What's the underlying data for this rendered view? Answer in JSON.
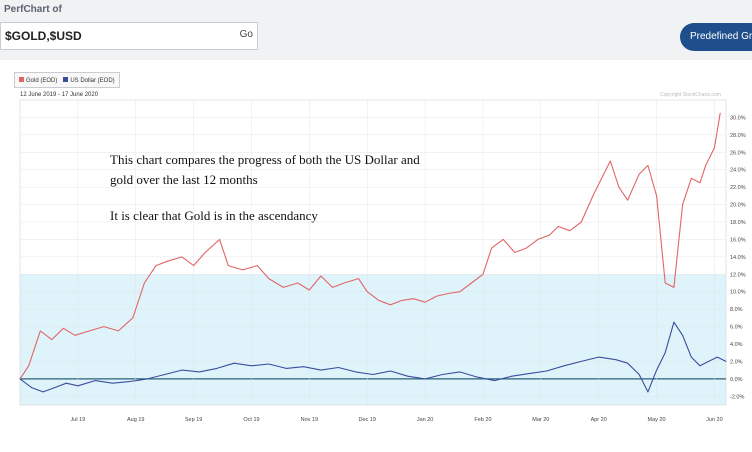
{
  "header": {
    "perfchart_label": "PerfChart of",
    "symbols_value": "$GOLD,$USD",
    "go_label": "Go",
    "predefined_groups_label": "Predefined Groups"
  },
  "legend": {
    "gold": "Gold (EOD)",
    "usd": "US Dollar (EOD)"
  },
  "date_range": "12 June 2019 - 17 June 2020",
  "copyright": "Copyright StockCharts.com",
  "annotation": {
    "line1": "This chart compares the progress of both the US Dollar and",
    "line2": "gold over the last 12 months",
    "line3": "It is clear that Gold is in the ascendancy"
  },
  "colors": {
    "gold": "#e06666",
    "usd": "#3a4ea0",
    "zero_line": "#2d5f7a",
    "band_fill": "#dff3fa"
  },
  "chart_data": {
    "type": "line",
    "title": "",
    "xlabel": "",
    "ylabel": "",
    "x_tick_labels": [
      "Jul 19",
      "Aug 19",
      "Sep 19",
      "Oct 19",
      "Nov 19",
      "Dec 19",
      "Jan 20",
      "Feb 20",
      "Mar 20",
      "Apr 20",
      "May 20",
      "Jun 20"
    ],
    "y_tick_labels": [
      "30.0%",
      "28.0%",
      "26.0%",
      "24.0%",
      "22.0%",
      "20.0%",
      "18.0%",
      "16.0%",
      "14.0%",
      "12.0%",
      "10.0%",
      "8.0%",
      "6.0%",
      "4.0%",
      "2.0%",
      "0.0%",
      "-2.0%"
    ],
    "ylim": [
      -3,
      32
    ],
    "x_months_range": [
      0,
      12.2
    ],
    "legend_position": "top-left",
    "grid": true,
    "series": [
      {
        "name": "Gold (EOD)",
        "points": [
          [
            0.0,
            0.0
          ],
          [
            0.15,
            1.5
          ],
          [
            0.35,
            5.5
          ],
          [
            0.55,
            4.5
          ],
          [
            0.75,
            5.8
          ],
          [
            0.95,
            5.0
          ],
          [
            1.2,
            5.5
          ],
          [
            1.45,
            6.0
          ],
          [
            1.7,
            5.5
          ],
          [
            1.95,
            7.0
          ],
          [
            2.15,
            11.0
          ],
          [
            2.35,
            13.0
          ],
          [
            2.55,
            13.5
          ],
          [
            2.8,
            14.0
          ],
          [
            3.0,
            13.0
          ],
          [
            3.2,
            14.5
          ],
          [
            3.45,
            16.0
          ],
          [
            3.6,
            13.0
          ],
          [
            3.85,
            12.5
          ],
          [
            4.1,
            13.0
          ],
          [
            4.3,
            11.5
          ],
          [
            4.55,
            10.5
          ],
          [
            4.8,
            11.0
          ],
          [
            5.0,
            10.2
          ],
          [
            5.2,
            11.8
          ],
          [
            5.4,
            10.5
          ],
          [
            5.6,
            11.0
          ],
          [
            5.85,
            11.5
          ],
          [
            6.0,
            10.0
          ],
          [
            6.2,
            9.0
          ],
          [
            6.4,
            8.5
          ],
          [
            6.6,
            9.0
          ],
          [
            6.8,
            9.2
          ],
          [
            7.0,
            8.8
          ],
          [
            7.2,
            9.5
          ],
          [
            7.4,
            9.8
          ],
          [
            7.6,
            10.0
          ],
          [
            7.8,
            11.0
          ],
          [
            8.0,
            12.0
          ],
          [
            8.15,
            15.0
          ],
          [
            8.35,
            16.0
          ],
          [
            8.55,
            14.5
          ],
          [
            8.75,
            15.0
          ],
          [
            8.95,
            16.0
          ],
          [
            9.15,
            16.5
          ],
          [
            9.3,
            17.5
          ],
          [
            9.5,
            17.0
          ],
          [
            9.7,
            18.0
          ],
          [
            9.9,
            21.0
          ],
          [
            10.05,
            23.0
          ],
          [
            10.2,
            25.0
          ],
          [
            10.35,
            22.0
          ],
          [
            10.5,
            20.5
          ],
          [
            10.7,
            23.5
          ],
          [
            10.85,
            24.5
          ],
          [
            11.0,
            21.0
          ],
          [
            11.15,
            11.0
          ],
          [
            11.3,
            10.5
          ],
          [
            11.45,
            20.0
          ],
          [
            11.6,
            23.0
          ],
          [
            11.75,
            22.5
          ],
          [
            11.85,
            24.5
          ],
          [
            12.0,
            26.5
          ],
          [
            12.1,
            30.5
          ]
        ]
      },
      {
        "name": "US Dollar (EOD)",
        "points": [
          [
            0.0,
            0.0
          ],
          [
            0.2,
            -1.0
          ],
          [
            0.4,
            -1.5
          ],
          [
            0.6,
            -1.0
          ],
          [
            0.8,
            -0.5
          ],
          [
            1.0,
            -0.8
          ],
          [
            1.3,
            -0.2
          ],
          [
            1.6,
            -0.5
          ],
          [
            1.9,
            -0.3
          ],
          [
            2.2,
            0.0
          ],
          [
            2.5,
            0.5
          ],
          [
            2.8,
            1.0
          ],
          [
            3.1,
            0.8
          ],
          [
            3.4,
            1.2
          ],
          [
            3.7,
            1.8
          ],
          [
            4.0,
            1.5
          ],
          [
            4.3,
            1.7
          ],
          [
            4.6,
            1.2
          ],
          [
            4.9,
            1.4
          ],
          [
            5.2,
            1.0
          ],
          [
            5.5,
            1.3
          ],
          [
            5.8,
            0.8
          ],
          [
            6.1,
            0.5
          ],
          [
            6.4,
            0.9
          ],
          [
            6.7,
            0.3
          ],
          [
            7.0,
            0.0
          ],
          [
            7.3,
            0.5
          ],
          [
            7.6,
            0.8
          ],
          [
            7.9,
            0.2
          ],
          [
            8.2,
            -0.2
          ],
          [
            8.5,
            0.3
          ],
          [
            8.8,
            0.6
          ],
          [
            9.1,
            0.9
          ],
          [
            9.4,
            1.5
          ],
          [
            9.7,
            2.0
          ],
          [
            10.0,
            2.5
          ],
          [
            10.3,
            2.2
          ],
          [
            10.5,
            1.8
          ],
          [
            10.7,
            0.5
          ],
          [
            10.85,
            -1.5
          ],
          [
            11.0,
            1.0
          ],
          [
            11.15,
            3.0
          ],
          [
            11.3,
            6.5
          ],
          [
            11.45,
            5.0
          ],
          [
            11.6,
            2.5
          ],
          [
            11.75,
            1.5
          ],
          [
            11.9,
            2.0
          ],
          [
            12.05,
            2.5
          ],
          [
            12.2,
            2.0
          ]
        ]
      }
    ]
  }
}
